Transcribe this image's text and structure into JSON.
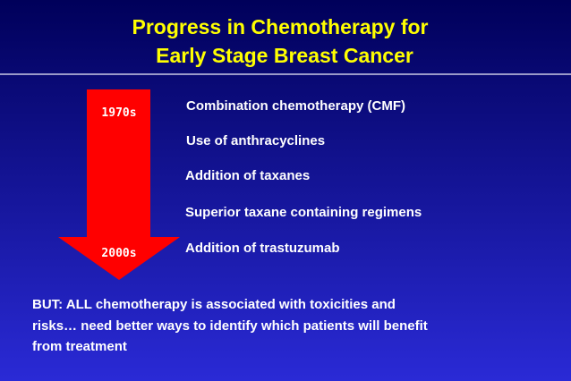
{
  "slide": {
    "title": [
      "Progress in Chemotherapy for",
      "Early Stage Breast Cancer"
    ],
    "timeline": {
      "start": "1970s",
      "end": "2000s"
    },
    "items": [
      "Combination chemotherapy (CMF)",
      "Use of anthracyclines",
      "Addition of taxanes",
      "Superior taxane containing regimens",
      "Addition of trastuzumab"
    ],
    "note": [
      "BUT:  ALL chemotherapy is associated with toxicities and",
      "risks… need better ways to identify which patients will benefit",
      "from treatment"
    ]
  }
}
